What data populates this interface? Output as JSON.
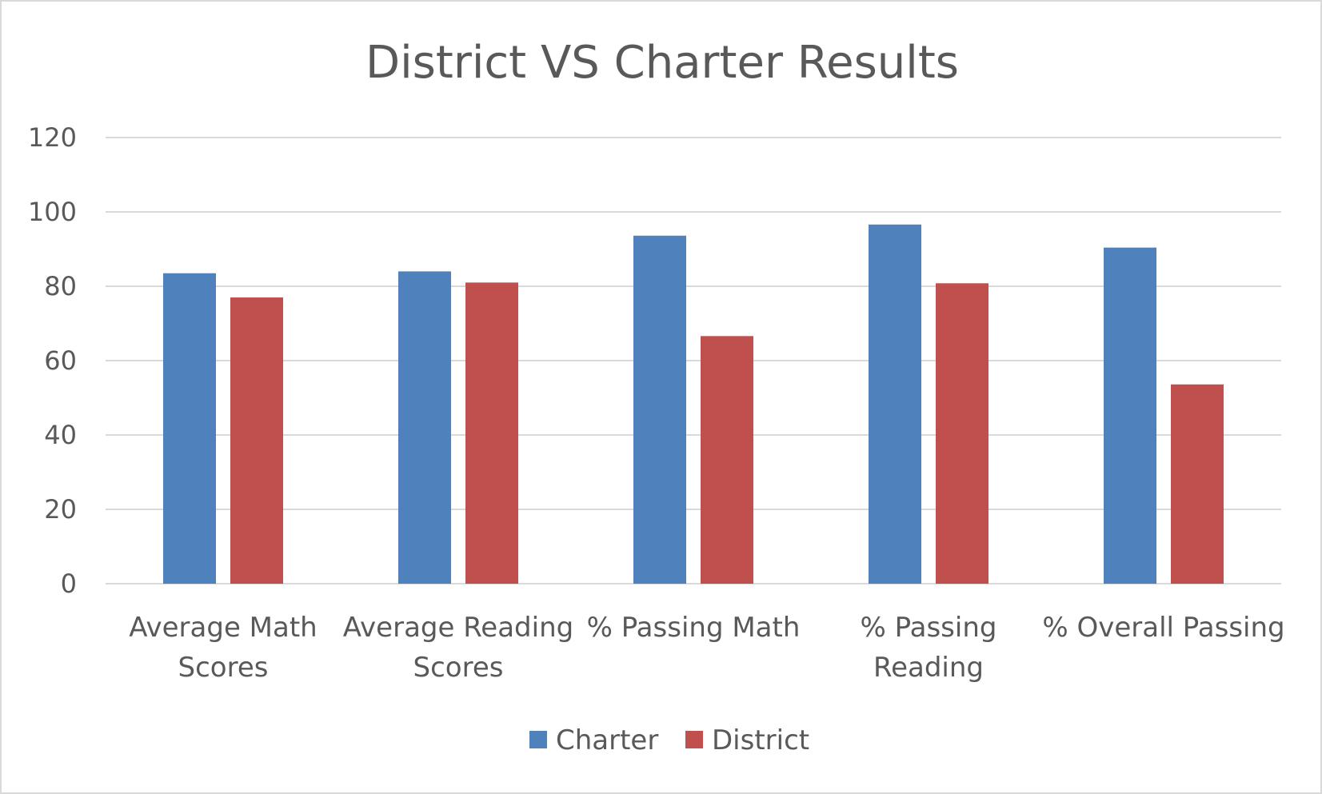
{
  "chart_data": {
    "type": "bar",
    "title": "District VS Charter Results",
    "xlabel": "",
    "ylabel": "",
    "ylim": [
      0,
      120
    ],
    "yticks": [
      0,
      20,
      40,
      60,
      80,
      100,
      120
    ],
    "grid": true,
    "legend_position": "bottom",
    "categories": [
      [
        "Average Math",
        "Scores"
      ],
      [
        "Average Reading",
        "Scores"
      ],
      [
        "% Passing Math"
      ],
      [
        "% Passing",
        "Reading"
      ],
      [
        "% Overall Passing"
      ]
    ],
    "series": [
      {
        "name": "Charter",
        "color": "#4f81bd",
        "values": [
          83.5,
          84.0,
          93.6,
          96.6,
          90.4
        ]
      },
      {
        "name": "District",
        "color": "#c0504d",
        "values": [
          77.0,
          81.0,
          66.6,
          80.8,
          53.6
        ]
      }
    ]
  }
}
